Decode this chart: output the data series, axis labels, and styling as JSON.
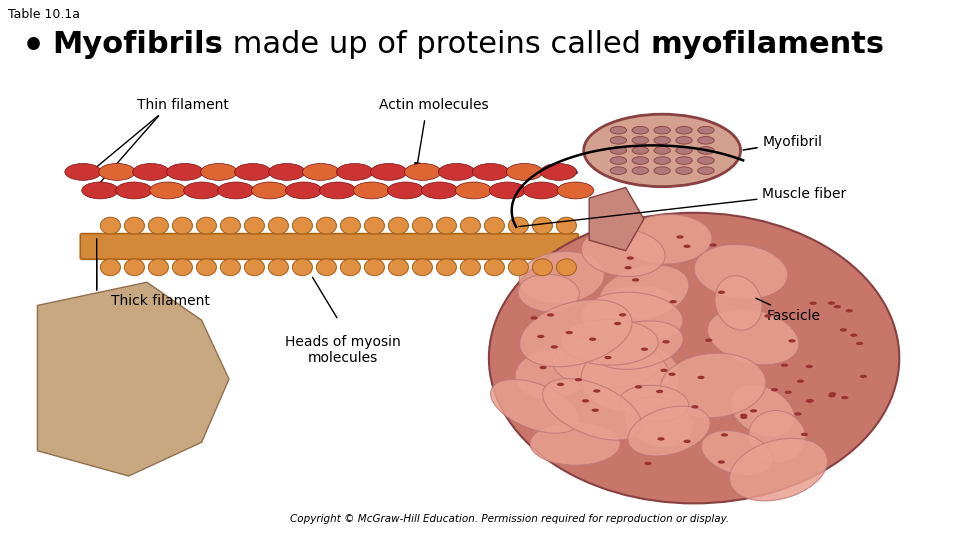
{
  "background_color": "#ffffff",
  "table_label": "Table 10.1a",
  "table_label_fontsize": 9,
  "bullet_parts": [
    {
      "text": "Myofibrils",
      "bold": true
    },
    {
      "text": " made up of proteins called ",
      "bold": false
    },
    {
      "text": "myofilaments",
      "bold": true
    }
  ],
  "bullet_fontsize": 22,
  "copyright_text": "Copyright © McGraw-Hill Education. Permission required for reproduction or display.",
  "copyright_fontsize": 7.5,
  "label_fontsize": 10,
  "thin_filament_label": "Thin filament",
  "actin_label": "Actin molecules",
  "thick_filament_label": "Thick filament",
  "myosin_heads_label": "Heads of myosin\nmolecules",
  "myofibril_label": "Myofibril",
  "muscle_fiber_label": "Muscle fiber",
  "fascicle_label": "Fascicle",
  "thick_color": "#D4893A",
  "thick_edge": "#B06010",
  "head_color": "#E09040",
  "head_edge": "#A06020",
  "bead_color1": "#CC3333",
  "bead_color2": "#DD6633",
  "bead_edge": "#771111",
  "strand_color": "#335599",
  "muscle_bg_color": "#C8756A",
  "muscle_bg_edge": "#884040",
  "cell_color": "#E8A090",
  "cell_edge": "#C07878",
  "dot_color": "#993333",
  "neck_color": "#C8857A",
  "mf_color": "#D4A090",
  "mf_dot_color": "#B07878",
  "mf_dot_edge": "#884040",
  "tail_color": "#C8A880",
  "tail_edge": "#907050",
  "arc_color": "#000000"
}
